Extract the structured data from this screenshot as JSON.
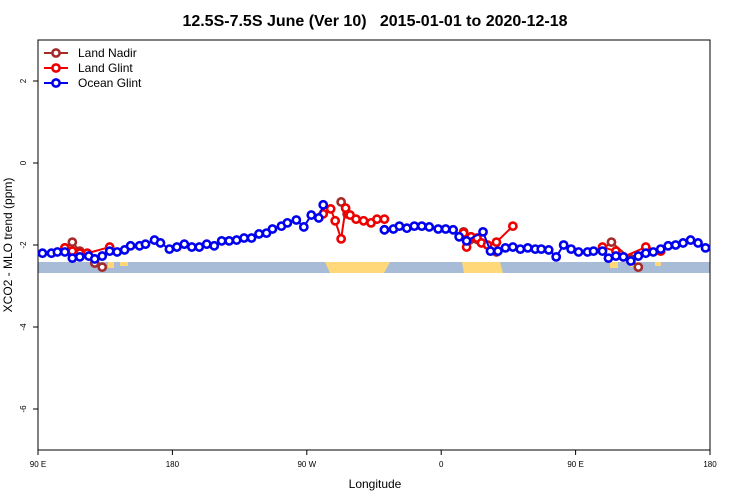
{
  "chart_data": {
    "type": "line",
    "title": "12.5S-7.5S June (Ver 10)   2015-01-01 to 2020-12-18",
    "xlabel": "Longitude",
    "ylabel": "XCO2 - MLO trend (ppm)",
    "xlim": [
      90,
      540
    ],
    "ylim": [
      -7,
      3
    ],
    "xticks": [
      {
        "value": 90,
        "label": "90 E"
      },
      180,
      {
        "value": 270,
        "label": "90 W"
      },
      {
        "value": 360,
        "label": "0"
      },
      {
        "value": 450,
        "label": "90 E"
      },
      {
        "value": 540,
        "label": "180"
      }
    ],
    "yticks": [
      2,
      0,
      -2,
      -4,
      -6
    ],
    "legend": "top-left",
    "series": [
      {
        "name": "Land Nadir",
        "color": "#a52a2a",
        "x": [
          108,
          113,
          118,
          128,
          133,
          null,
          293,
          297,
          null,
          322,
          null,
          375,
          379,
          397,
          null,
          468,
          474,
          487,
          492
        ],
        "values": [
          -2.07,
          -1.93,
          -2.15,
          -2.44,
          -2.54,
          null,
          -0.95,
          -1.24,
          null,
          -1.63,
          null,
          -1.68,
          -1.88,
          -2.17,
          null,
          -2.1,
          -1.93,
          -2.34,
          -2.54
        ]
      },
      {
        "name": "Land Glint",
        "color": "#ee0000",
        "x": [
          108,
          113,
          118,
          123,
          138,
          null,
          281,
          286,
          289,
          293,
          296,
          299,
          303,
          308,
          313,
          317,
          322,
          null,
          375,
          377,
          380,
          384,
          387,
          391,
          397,
          408,
          null,
          468,
          477,
          482,
          497,
          507
        ],
        "values": [
          -2.07,
          -2.15,
          -2.2,
          -2.2,
          -2.05,
          null,
          -1.24,
          -1.12,
          -1.41,
          -1.85,
          -1.1,
          -1.27,
          -1.37,
          -1.41,
          -1.46,
          -1.37,
          -1.37,
          null,
          -1.71,
          -2.05,
          -1.8,
          -1.83,
          -1.95,
          -2.0,
          -1.93,
          -1.54,
          null,
          -2.05,
          -2.15,
          -2.29,
          -2.05,
          -2.15
        ]
      },
      {
        "name": "Ocean Glint",
        "color": "#0000ee",
        "x": [
          93,
          99,
          103,
          108,
          113,
          118,
          124,
          128,
          133,
          138,
          143,
          148,
          152,
          158,
          162,
          168,
          172,
          178,
          183,
          188,
          193,
          198,
          203,
          208,
          213,
          218,
          223,
          228,
          233,
          238,
          243,
          247,
          253,
          257,
          263,
          268,
          273,
          278,
          281,
          null,
          322,
          328,
          332,
          337,
          342,
          347,
          352,
          358,
          363,
          368,
          372,
          377,
          388,
          393,
          398,
          403,
          408,
          413,
          418,
          423,
          427,
          432,
          437,
          442,
          447,
          452,
          458,
          462,
          468,
          472,
          477,
          482,
          487,
          492,
          497,
          502,
          507,
          512,
          517,
          522,
          527,
          532,
          537
        ],
        "values": [
          -2.2,
          -2.2,
          -2.17,
          -2.17,
          -2.32,
          -2.29,
          -2.27,
          -2.34,
          -2.27,
          -2.15,
          -2.17,
          -2.12,
          -2.02,
          -2.02,
          -1.98,
          -1.88,
          -1.95,
          -2.1,
          -2.05,
          -1.98,
          -2.05,
          -2.05,
          -1.98,
          -2.02,
          -1.9,
          -1.9,
          -1.88,
          -1.83,
          -1.83,
          -1.73,
          -1.71,
          -1.61,
          -1.54,
          -1.46,
          -1.39,
          -1.56,
          -1.27,
          -1.34,
          -1.02,
          null,
          -1.63,
          -1.61,
          -1.54,
          -1.59,
          -1.54,
          -1.54,
          -1.56,
          -1.61,
          -1.61,
          -1.63,
          -1.8,
          -1.9,
          -1.68,
          -2.15,
          -2.15,
          -2.07,
          -2.05,
          -2.1,
          -2.07,
          -2.1,
          -2.1,
          -2.12,
          -2.29,
          -2.0,
          -2.1,
          -2.17,
          -2.17,
          -2.15,
          -2.15,
          -2.32,
          -2.27,
          -2.29,
          -2.39,
          -2.27,
          -2.2,
          -2.17,
          -2.1,
          -2.02,
          -2.0,
          -1.95,
          -1.88,
          -1.95,
          -2.07
        ]
      }
    ]
  }
}
